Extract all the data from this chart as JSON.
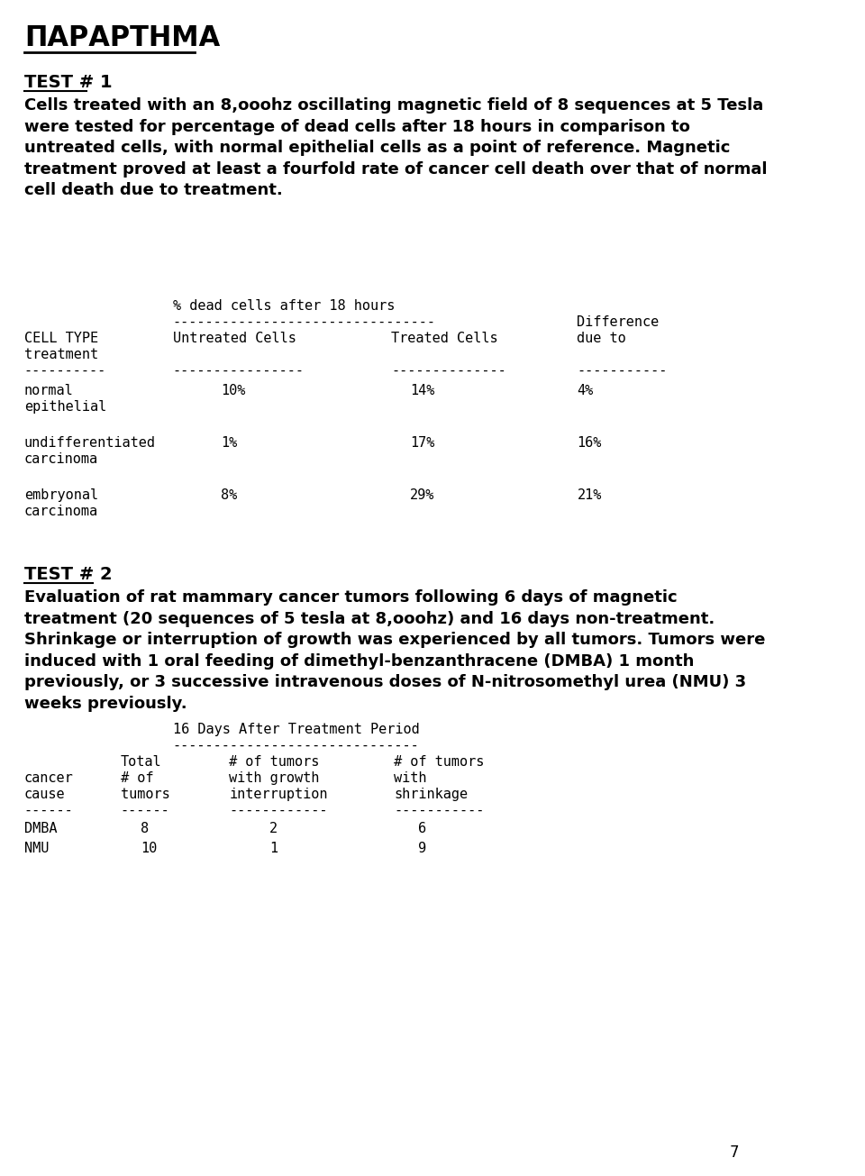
{
  "bg_color": "#ffffff",
  "title": "ΠΑΡΑΡΤΗΜΑ",
  "test1_heading": "TEST # 1",
  "test1_body": "Cells treated with an 8,ooohz oscillating magnetic field of 8 sequences at 5 Tesla\nwere tested for percentage of dead cells after 18 hours in comparison to\nuntreated cells, with normal epithelial cells as a point of reference. Magnetic\ntreatment proved at least a fourfold rate of cancer cell death over that of normal\ncell death due to treatment.",
  "table1_header_row1": "% dead cells after 18 hours",
  "table1_dashes1": "--------------------------------",
  "table1_rows": [
    [
      "normal\nepithelial",
      "10%",
      "14%",
      "4%"
    ],
    [
      "undifferentiated\ncarcinoma",
      "1%",
      "17%",
      "16%"
    ],
    [
      "embryonal\ncarcinoma",
      "8%",
      "29%",
      "21%"
    ]
  ],
  "test2_heading": "TEST # 2",
  "test2_body": "Evaluation of rat mammary cancer tumors following 6 days of magnetic\ntreatment (20 sequences of 5 tesla at 8,ooohz) and 16 days non-treatment.\nShrinkage or interruption of growth was experienced by all tumors. Tumors were\ninduced with 1 oral feeding of dimethyl-benzanthracene (DMBA) 1 month\npreviously, or 3 successive intravenous doses of N-nitrosomethyl urea (NMU) 3\nweeks previously.",
  "table2_header_row1": "16 Days After Treatment Period",
  "table2_dashes1": "------------------------------",
  "table2_col_headers": [
    [
      "",
      "Total",
      "# of tumors",
      "# of tumors"
    ],
    [
      "cancer",
      "# of",
      "with growth",
      "with"
    ],
    [
      "cause",
      "tumors",
      "interruption",
      "shrinkage"
    ]
  ],
  "table2_rows": [
    [
      "DMBA",
      "8",
      "2",
      "6"
    ],
    [
      "NMU",
      "10",
      "1",
      "9"
    ]
  ],
  "page_number": "7"
}
